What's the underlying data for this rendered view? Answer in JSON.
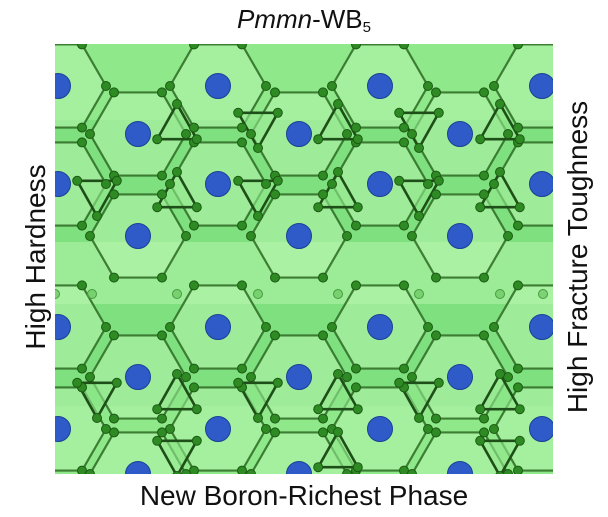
{
  "title": {
    "prefix": "Pmmn",
    "dash_formula": "-WB",
    "subscript": "5"
  },
  "left_label": "High Hardness",
  "right_label": "High Fracture Toughness",
  "bottom_label": "New Boron-Richest Phase",
  "colors": {
    "background_green": "#7fe07f",
    "light_panel_green": "#b8f5b0",
    "mid_panel_green": "#93ea8d",
    "tungsten_atom": "#2f5bc9",
    "boron_atom": "#2e8a22",
    "bond": "#2c6a22"
  }
}
